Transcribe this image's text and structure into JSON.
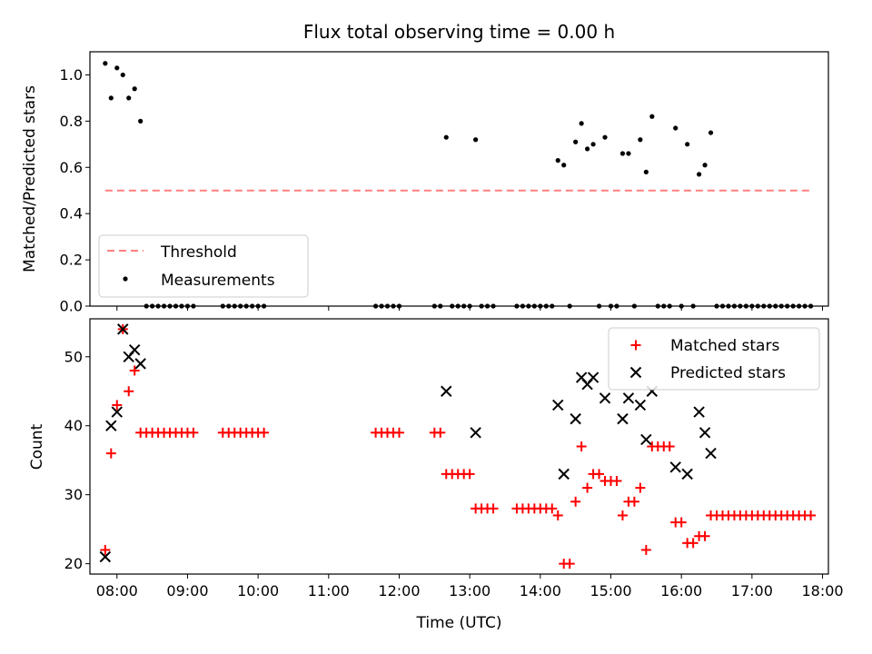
{
  "title": "Flux total observing time = 0.00 h",
  "colors": {
    "threshold": "#ff7f7f",
    "measurement": "#000000",
    "matched": "#ff0000",
    "predicted": "#000000"
  },
  "chart_data": [
    {
      "type": "scatter",
      "panel": "top",
      "ylabel": "Matched/Predicted stars",
      "xlabel": "",
      "xlim": [
        "07:37",
        "18:05"
      ],
      "ylim": [
        0,
        1.1
      ],
      "yticks": [
        0.0,
        0.2,
        0.4,
        0.6,
        0.8,
        1.0
      ],
      "ytick_labels": [
        "0.0",
        "0.2",
        "0.4",
        "0.6",
        "0.8",
        "1.0"
      ],
      "legend": {
        "position": "lower-left",
        "entries": [
          "Threshold",
          "Measurements"
        ]
      },
      "threshold": {
        "name": "Threshold",
        "value": 0.5,
        "x": [
          "07:50",
          "17:50"
        ]
      },
      "series": [
        {
          "name": "Measurements",
          "points": [
            [
              "07:50",
              1.05
            ],
            [
              "07:55",
              0.9
            ],
            [
              "08:00",
              1.03
            ],
            [
              "08:05",
              1.0
            ],
            [
              "08:10",
              0.9
            ],
            [
              "08:15",
              0.94
            ],
            [
              "08:20",
              0.8
            ],
            [
              "08:25",
              0
            ],
            [
              "08:30",
              0
            ],
            [
              "08:35",
              0
            ],
            [
              "08:40",
              0
            ],
            [
              "08:45",
              0
            ],
            [
              "08:50",
              0
            ],
            [
              "08:55",
              0
            ],
            [
              "09:00",
              0
            ],
            [
              "09:05",
              0
            ],
            [
              "09:30",
              0
            ],
            [
              "09:35",
              0
            ],
            [
              "09:40",
              0
            ],
            [
              "09:45",
              0
            ],
            [
              "09:50",
              0
            ],
            [
              "09:55",
              0
            ],
            [
              "10:00",
              0
            ],
            [
              "10:05",
              0
            ],
            [
              "11:40",
              0
            ],
            [
              "11:45",
              0
            ],
            [
              "11:50",
              0
            ],
            [
              "11:55",
              0
            ],
            [
              "12:00",
              0
            ],
            [
              "12:30",
              0
            ],
            [
              "12:35",
              0
            ],
            [
              "12:40",
              0.73
            ],
            [
              "12:45",
              0
            ],
            [
              "12:50",
              0
            ],
            [
              "12:55",
              0
            ],
            [
              "13:00",
              0
            ],
            [
              "13:05",
              0.72
            ],
            [
              "13:10",
              0
            ],
            [
              "13:15",
              0
            ],
            [
              "13:20",
              0
            ],
            [
              "13:40",
              0
            ],
            [
              "13:45",
              0
            ],
            [
              "13:50",
              0
            ],
            [
              "13:55",
              0
            ],
            [
              "14:00",
              0
            ],
            [
              "14:05",
              0
            ],
            [
              "14:10",
              0
            ],
            [
              "14:15",
              0.63
            ],
            [
              "14:20",
              0.61
            ],
            [
              "14:25",
              0
            ],
            [
              "14:30",
              0.71
            ],
            [
              "14:35",
              0.79
            ],
            [
              "14:40",
              0.68
            ],
            [
              "14:45",
              0.7
            ],
            [
              "14:50",
              0
            ],
            [
              "14:55",
              0.73
            ],
            [
              "15:00",
              0
            ],
            [
              "15:05",
              0
            ],
            [
              "15:10",
              0.66
            ],
            [
              "15:15",
              0.66
            ],
            [
              "15:20",
              0
            ],
            [
              "15:25",
              0.72
            ],
            [
              "15:30",
              0.58
            ],
            [
              "15:35",
              0.82
            ],
            [
              "15:40",
              0
            ],
            [
              "15:45",
              0
            ],
            [
              "15:50",
              0
            ],
            [
              "15:55",
              0.77
            ],
            [
              "16:00",
              0
            ],
            [
              "16:05",
              0.7
            ],
            [
              "16:10",
              0
            ],
            [
              "16:15",
              0.57
            ],
            [
              "16:20",
              0.61
            ],
            [
              "16:25",
              0.75
            ],
            [
              "16:30",
              0
            ],
            [
              "16:35",
              0
            ],
            [
              "16:40",
              0
            ],
            [
              "16:45",
              0
            ],
            [
              "16:50",
              0
            ],
            [
              "16:55",
              0
            ],
            [
              "17:00",
              0
            ],
            [
              "17:05",
              0
            ],
            [
              "17:10",
              0
            ],
            [
              "17:15",
              0
            ],
            [
              "17:20",
              0
            ],
            [
              "17:25",
              0
            ],
            [
              "17:30",
              0
            ],
            [
              "17:35",
              0
            ],
            [
              "17:40",
              0
            ],
            [
              "17:45",
              0
            ],
            [
              "17:50",
              0
            ]
          ]
        }
      ]
    },
    {
      "type": "scatter",
      "panel": "bottom",
      "ylabel": "Count",
      "xlabel": "Time (UTC)",
      "xlim": [
        "07:37",
        "18:05"
      ],
      "ylim": [
        18.5,
        55.5
      ],
      "yticks": [
        20,
        30,
        40,
        50
      ],
      "ytick_labels": [
        "20",
        "30",
        "40",
        "50"
      ],
      "xticks": [
        "08:00",
        "09:00",
        "10:00",
        "11:00",
        "12:00",
        "13:00",
        "14:00",
        "15:00",
        "16:00",
        "17:00",
        "18:00"
      ],
      "legend": {
        "position": "upper-right",
        "entries": [
          "Matched stars",
          "Predicted stars"
        ]
      },
      "series": [
        {
          "name": "Matched stars",
          "marker": "plus",
          "points": [
            [
              "07:50",
              22
            ],
            [
              "07:55",
              36
            ],
            [
              "08:00",
              43
            ],
            [
              "08:05",
              54
            ],
            [
              "08:10",
              45
            ],
            [
              "08:15",
              48
            ],
            [
              "08:20",
              39
            ],
            [
              "08:25",
              39
            ],
            [
              "08:30",
              39
            ],
            [
              "08:35",
              39
            ],
            [
              "08:40",
              39
            ],
            [
              "08:45",
              39
            ],
            [
              "08:50",
              39
            ],
            [
              "08:55",
              39
            ],
            [
              "09:00",
              39
            ],
            [
              "09:05",
              39
            ],
            [
              "09:30",
              39
            ],
            [
              "09:35",
              39
            ],
            [
              "09:40",
              39
            ],
            [
              "09:45",
              39
            ],
            [
              "09:50",
              39
            ],
            [
              "09:55",
              39
            ],
            [
              "10:00",
              39
            ],
            [
              "10:05",
              39
            ],
            [
              "11:40",
              39
            ],
            [
              "11:45",
              39
            ],
            [
              "11:50",
              39
            ],
            [
              "11:55",
              39
            ],
            [
              "12:00",
              39
            ],
            [
              "12:30",
              39
            ],
            [
              "12:35",
              39
            ],
            [
              "12:40",
              33
            ],
            [
              "12:45",
              33
            ],
            [
              "12:50",
              33
            ],
            [
              "12:55",
              33
            ],
            [
              "13:00",
              33
            ],
            [
              "13:05",
              28
            ],
            [
              "13:10",
              28
            ],
            [
              "13:15",
              28
            ],
            [
              "13:20",
              28
            ],
            [
              "13:40",
              28
            ],
            [
              "13:45",
              28
            ],
            [
              "13:50",
              28
            ],
            [
              "13:55",
              28
            ],
            [
              "14:00",
              28
            ],
            [
              "14:05",
              28
            ],
            [
              "14:10",
              28
            ],
            [
              "14:15",
              27
            ],
            [
              "14:20",
              20
            ],
            [
              "14:25",
              20
            ],
            [
              "14:30",
              29
            ],
            [
              "14:35",
              37
            ],
            [
              "14:40",
              31
            ],
            [
              "14:45",
              33
            ],
            [
              "14:50",
              33
            ],
            [
              "14:55",
              32
            ],
            [
              "15:00",
              32
            ],
            [
              "15:05",
              32
            ],
            [
              "15:10",
              27
            ],
            [
              "15:15",
              29
            ],
            [
              "15:20",
              29
            ],
            [
              "15:25",
              31
            ],
            [
              "15:30",
              22
            ],
            [
              "15:35",
              37
            ],
            [
              "15:40",
              37
            ],
            [
              "15:45",
              37
            ],
            [
              "15:50",
              37
            ],
            [
              "15:55",
              26
            ],
            [
              "16:00",
              26
            ],
            [
              "16:05",
              23
            ],
            [
              "16:10",
              23
            ],
            [
              "16:15",
              24
            ],
            [
              "16:20",
              24
            ],
            [
              "16:25",
              27
            ],
            [
              "16:30",
              27
            ],
            [
              "16:35",
              27
            ],
            [
              "16:40",
              27
            ],
            [
              "16:45",
              27
            ],
            [
              "16:50",
              27
            ],
            [
              "16:55",
              27
            ],
            [
              "17:00",
              27
            ],
            [
              "17:05",
              27
            ],
            [
              "17:10",
              27
            ],
            [
              "17:15",
              27
            ],
            [
              "17:20",
              27
            ],
            [
              "17:25",
              27
            ],
            [
              "17:30",
              27
            ],
            [
              "17:35",
              27
            ],
            [
              "17:40",
              27
            ],
            [
              "17:45",
              27
            ],
            [
              "17:50",
              27
            ]
          ]
        },
        {
          "name": "Predicted stars",
          "marker": "x",
          "points": [
            [
              "07:50",
              21
            ],
            [
              "07:55",
              40
            ],
            [
              "08:00",
              42
            ],
            [
              "08:05",
              54
            ],
            [
              "08:10",
              50
            ],
            [
              "08:15",
              51
            ],
            [
              "08:20",
              49
            ],
            [
              "12:40",
              45
            ],
            [
              "13:05",
              39
            ],
            [
              "14:15",
              43
            ],
            [
              "14:20",
              33
            ],
            [
              "14:30",
              41
            ],
            [
              "14:35",
              47
            ],
            [
              "14:40",
              46
            ],
            [
              "14:45",
              47
            ],
            [
              "14:55",
              44
            ],
            [
              "15:10",
              41
            ],
            [
              "15:15",
              44
            ],
            [
              "15:25",
              43
            ],
            [
              "15:30",
              38
            ],
            [
              "15:35",
              45
            ],
            [
              "15:55",
              34
            ],
            [
              "16:05",
              33
            ],
            [
              "16:15",
              42
            ],
            [
              "16:20",
              39
            ],
            [
              "16:25",
              36
            ]
          ]
        }
      ]
    }
  ]
}
